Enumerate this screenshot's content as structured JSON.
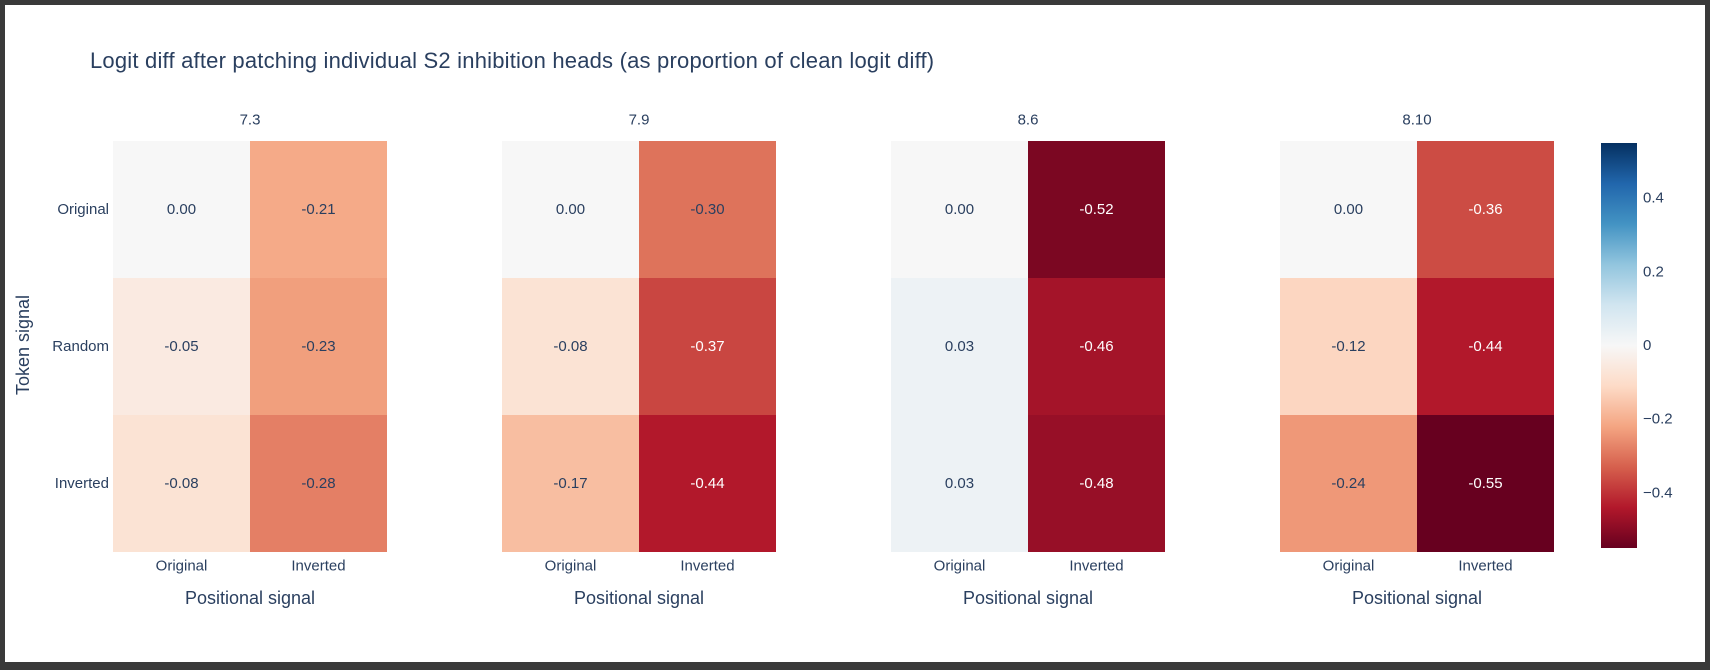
{
  "chart_data": {
    "type": "heatmap",
    "title": "Logit diff after patching individual S2 inhibition heads (as proportion of clean logit diff)",
    "xlabel": "Positional signal",
    "ylabel": "Token signal",
    "x_categories": [
      "Original",
      "Inverted"
    ],
    "y_categories": [
      "Original",
      "Random",
      "Inverted"
    ],
    "panels": [
      {
        "name": "7.3",
        "values": [
          [
            0.0,
            -0.21
          ],
          [
            -0.05,
            -0.23
          ],
          [
            -0.08,
            -0.28
          ]
        ]
      },
      {
        "name": "7.9",
        "values": [
          [
            0.0,
            -0.3
          ],
          [
            -0.08,
            -0.37
          ],
          [
            -0.17,
            -0.44
          ]
        ]
      },
      {
        "name": "8.6",
        "values": [
          [
            0.0,
            -0.52
          ],
          [
            0.03,
            -0.46
          ],
          [
            0.03,
            -0.48
          ]
        ]
      },
      {
        "name": "8.10",
        "values": [
          [
            0.0,
            -0.36
          ],
          [
            -0.12,
            -0.44
          ],
          [
            -0.24,
            -0.55
          ]
        ]
      }
    ],
    "colorscale": "RdBu",
    "zmin": -0.55,
    "zmax": 0.55,
    "colorbar_ticks": [
      0.4,
      0.2,
      0,
      -0.2,
      -0.4
    ],
    "colorbar_tick_labels": [
      "0.4",
      "0.2",
      "0",
      "−0.2",
      "−0.4"
    ],
    "text_dark_color": "#2a3f5f",
    "text_light_color": "#ffffff"
  }
}
